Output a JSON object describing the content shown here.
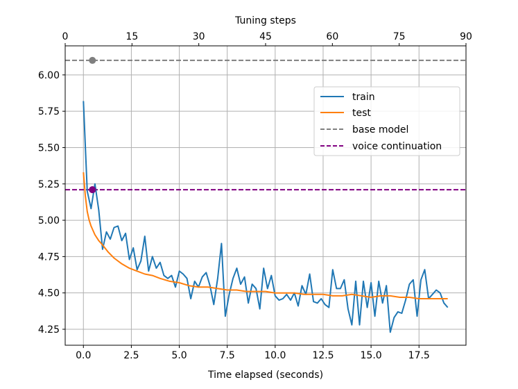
{
  "chart_data": {
    "type": "line",
    "title": "",
    "xlabel": "Time elapsed (seconds)",
    "x2label": "Tuning steps",
    "ylabel": "",
    "xlim": [
      -0.95,
      19.95
    ],
    "ylim": [
      4.14,
      6.2
    ],
    "x2lim": [
      0,
      90
    ],
    "xticks": [
      0.0,
      2.5,
      5.0,
      7.5,
      10.0,
      12.5,
      15.0,
      17.5
    ],
    "xtick_labels": [
      "0.0",
      "2.5",
      "5.0",
      "7.5",
      "10.0",
      "12.5",
      "15.0",
      "17.5"
    ],
    "x2ticks": [
      0,
      15,
      30,
      45,
      60,
      75,
      90
    ],
    "x2tick_labels": [
      "0",
      "15",
      "30",
      "45",
      "60",
      "75",
      "90"
    ],
    "yticks": [
      4.25,
      4.5,
      4.75,
      5.0,
      5.25,
      5.5,
      5.75,
      6.0
    ],
    "ytick_labels": [
      "4.25",
      "4.50",
      "4.75",
      "5.00",
      "5.25",
      "5.50",
      "5.75",
      "6.00"
    ],
    "grid": true,
    "legend_position": "upper-right",
    "series": [
      {
        "name": "train",
        "color": "#1f77b4",
        "x": [
          0.0,
          0.2,
          0.4,
          0.6,
          0.8,
          1.0,
          1.2,
          1.4,
          1.6,
          1.8,
          2.0,
          2.2,
          2.4,
          2.6,
          2.8,
          3.0,
          3.2,
          3.4,
          3.6,
          3.8,
          4.0,
          4.2,
          4.4,
          4.6,
          4.8,
          5.0,
          5.2,
          5.4,
          5.6,
          5.8,
          6.0,
          6.2,
          6.4,
          6.6,
          6.8,
          7.0,
          7.2,
          7.4,
          7.6,
          7.8,
          8.0,
          8.2,
          8.4,
          8.6,
          8.8,
          9.0,
          9.2,
          9.4,
          9.6,
          9.8,
          10.0,
          10.2,
          10.4,
          10.6,
          10.8,
          11.0,
          11.2,
          11.4,
          11.6,
          11.8,
          12.0,
          12.2,
          12.4,
          12.6,
          12.8,
          13.0,
          13.2,
          13.4,
          13.6,
          13.8,
          14.0,
          14.2,
          14.4,
          14.6,
          14.8,
          15.0,
          15.2,
          15.4,
          15.6,
          15.8,
          16.0,
          16.2,
          16.4,
          16.6,
          16.8,
          17.0,
          17.2,
          17.4,
          17.6,
          17.8,
          18.0,
          18.2,
          18.4,
          18.6,
          18.8,
          19.0
        ],
        "y": [
          5.82,
          5.2,
          5.08,
          5.25,
          5.07,
          4.8,
          4.92,
          4.87,
          4.95,
          4.96,
          4.86,
          4.91,
          4.73,
          4.81,
          4.66,
          4.72,
          4.89,
          4.65,
          4.75,
          4.67,
          4.71,
          4.62,
          4.6,
          4.62,
          4.54,
          4.65,
          4.63,
          4.6,
          4.46,
          4.58,
          4.54,
          4.61,
          4.64,
          4.55,
          4.42,
          4.6,
          4.84,
          4.34,
          4.49,
          4.6,
          4.67,
          4.56,
          4.61,
          4.43,
          4.56,
          4.53,
          4.39,
          4.67,
          4.53,
          4.62,
          4.48,
          4.45,
          4.46,
          4.49,
          4.45,
          4.5,
          4.41,
          4.55,
          4.49,
          4.63,
          4.44,
          4.43,
          4.46,
          4.42,
          4.4,
          4.66,
          4.53,
          4.53,
          4.59,
          4.39,
          4.28,
          4.58,
          4.28,
          4.58,
          4.4,
          4.57,
          4.34,
          4.58,
          4.43,
          4.55,
          4.23,
          4.33,
          4.37,
          4.36,
          4.45,
          4.56,
          4.59,
          4.34,
          4.59,
          4.66,
          4.46,
          4.49,
          4.52,
          4.5,
          4.43,
          4.4
        ]
      },
      {
        "name": "test",
        "color": "#ff7f0e",
        "x": [
          0.0,
          0.1,
          0.2,
          0.3,
          0.4,
          0.6,
          0.8,
          1.0,
          1.3,
          1.6,
          2.0,
          2.4,
          2.8,
          3.2,
          3.6,
          4.0,
          4.5,
          5.0,
          5.5,
          6.0,
          6.5,
          7.0,
          7.5,
          8.0,
          8.5,
          9.0,
          9.5,
          10.0,
          10.5,
          11.0,
          11.5,
          12.0,
          12.5,
          13.0,
          13.5,
          14.0,
          14.5,
          15.0,
          15.5,
          16.0,
          16.5,
          17.0,
          17.5,
          18.0,
          18.5,
          19.0
        ],
        "y": [
          5.33,
          5.17,
          5.06,
          5.0,
          4.96,
          4.9,
          4.86,
          4.83,
          4.78,
          4.74,
          4.7,
          4.67,
          4.65,
          4.63,
          4.62,
          4.6,
          4.58,
          4.57,
          4.55,
          4.54,
          4.54,
          4.53,
          4.52,
          4.52,
          4.51,
          4.51,
          4.51,
          4.5,
          4.5,
          4.5,
          4.49,
          4.49,
          4.49,
          4.48,
          4.48,
          4.49,
          4.48,
          4.47,
          4.48,
          4.48,
          4.47,
          4.47,
          4.46,
          4.46,
          4.46,
          4.46
        ]
      }
    ],
    "reference_lines": [
      {
        "name": "base model",
        "color": "#7f7f7f",
        "y": 6.1,
        "marker_x": 0.47
      },
      {
        "name": "voice continuation",
        "color": "#800080",
        "y": 5.21,
        "marker_x": 0.47
      }
    ]
  }
}
